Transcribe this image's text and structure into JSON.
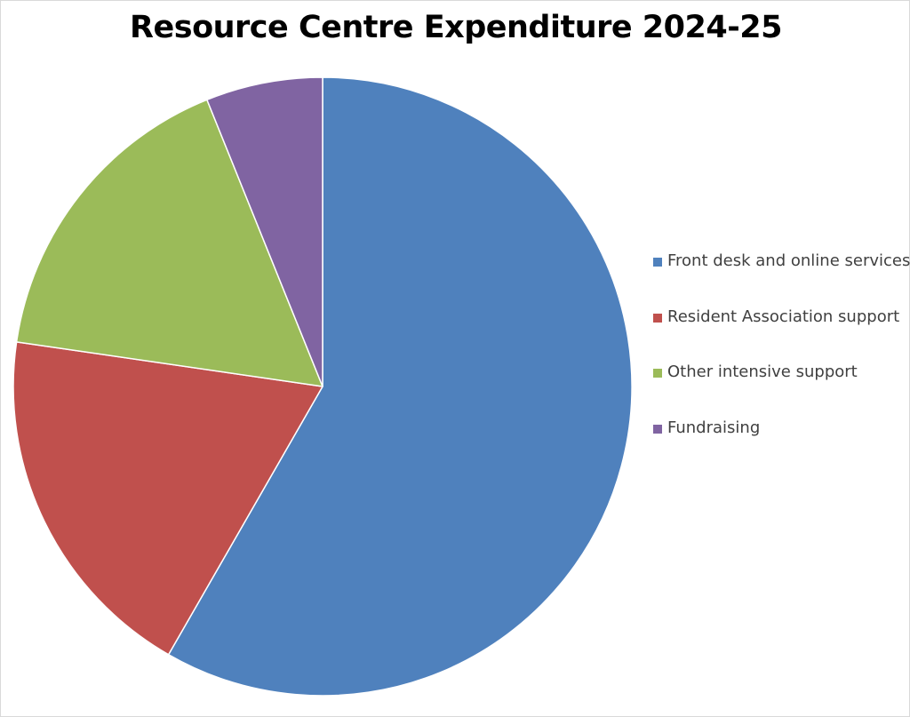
{
  "chart_data": {
    "type": "pie",
    "title": "Resource Centre Expenditure 2024-25",
    "legend_position": "right",
    "start_angle_deg": 0,
    "direction": "clockwise",
    "slices": [
      {
        "label": "Front desk and online services",
        "value": 58.3,
        "color": "#4F81BD"
      },
      {
        "label": "Resident Association support",
        "value": 19.0,
        "color": "#C0504D"
      },
      {
        "label": "Other intensive support",
        "value": 16.6,
        "color": "#9BBB59"
      },
      {
        "label": "Fundraising",
        "value": 6.1,
        "color": "#8064A2"
      }
    ]
  }
}
